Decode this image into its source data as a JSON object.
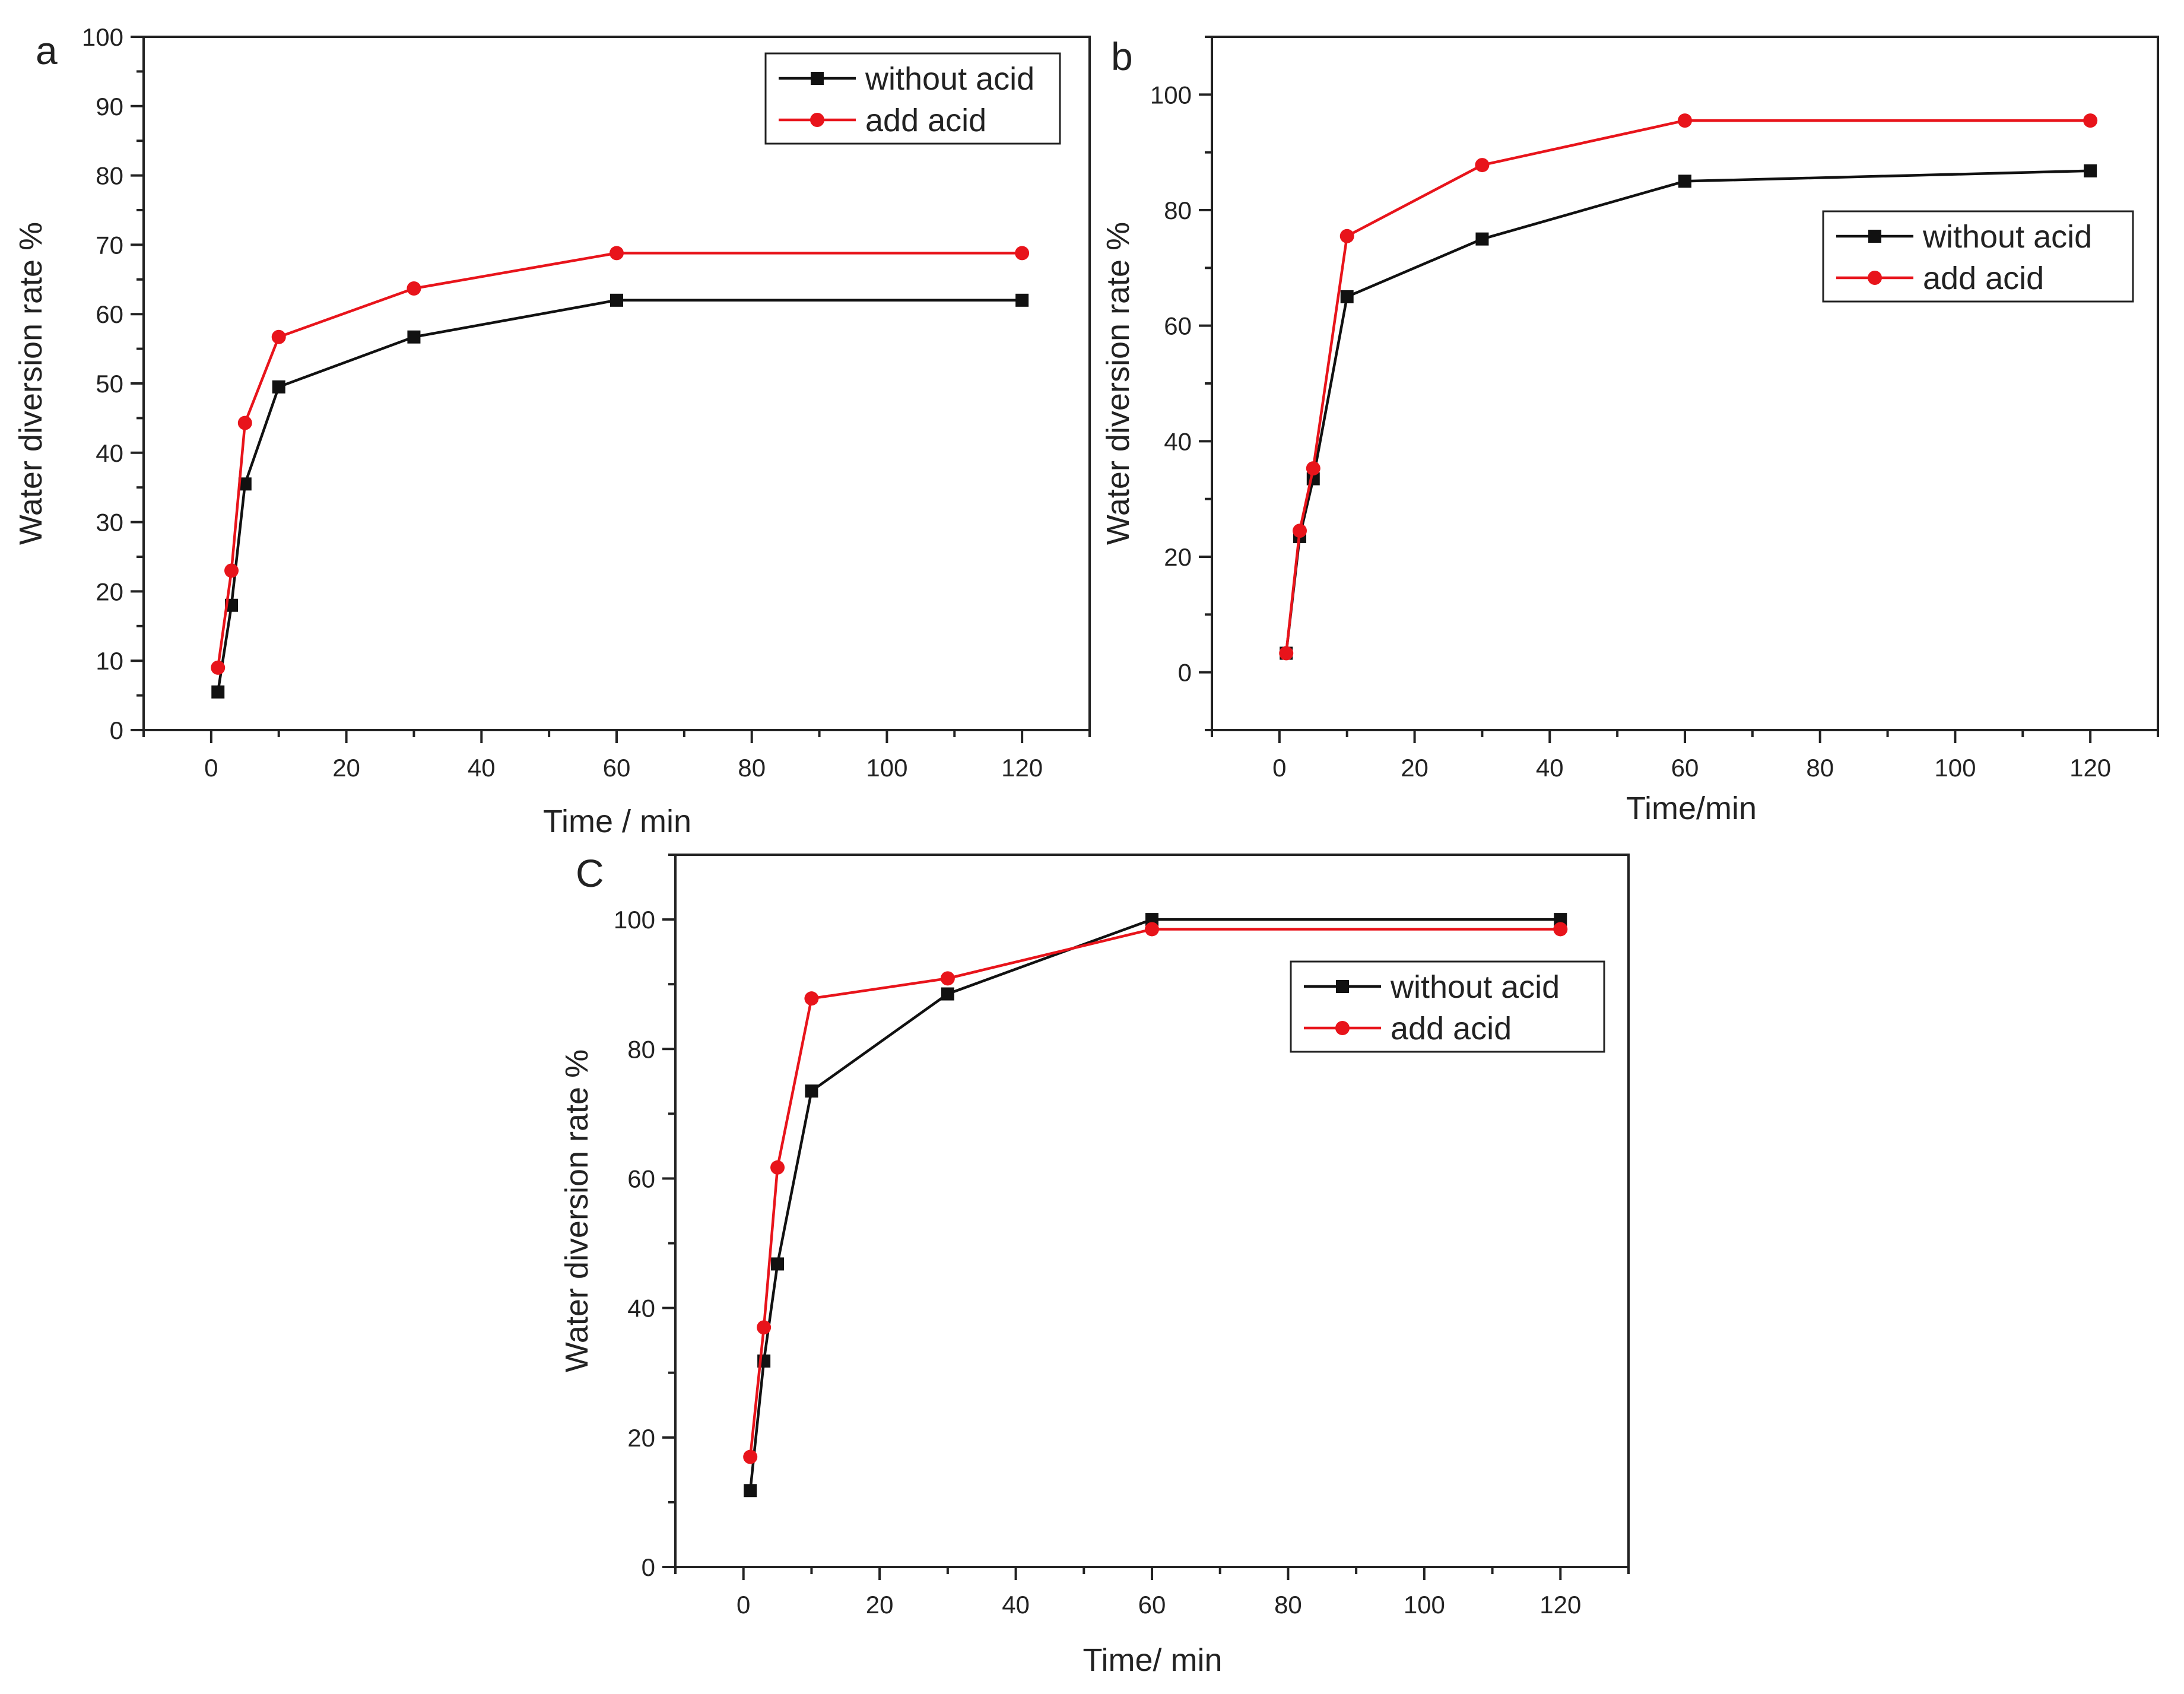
{
  "figure": {
    "background": "#ffffff"
  },
  "colors": {
    "without_acid": "#111111",
    "add_acid": "#e8141b",
    "axis": "#222222"
  },
  "chart_data": [
    {
      "panel": "a",
      "type": "line",
      "xlabel": "Time / min",
      "ylabel": "Water diversion rate %",
      "xlim": [
        -10,
        130
      ],
      "ylim": [
        0,
        100
      ],
      "xticks": [
        0,
        20,
        40,
        60,
        80,
        100,
        120
      ],
      "yticks": [
        0,
        10,
        20,
        30,
        40,
        50,
        60,
        70,
        80,
        90,
        100
      ],
      "legend_position": "top-right",
      "series": [
        {
          "name": "without acid",
          "marker": "square",
          "x": [
            1,
            3,
            5,
            10,
            30,
            60,
            120
          ],
          "y": [
            5.5,
            18,
            35.5,
            49.5,
            56.7,
            62,
            62
          ]
        },
        {
          "name": "add acid",
          "marker": "circle",
          "x": [
            1,
            3,
            5,
            10,
            30,
            60,
            120
          ],
          "y": [
            9,
            23,
            44.3,
            56.7,
            63.7,
            68.8,
            68.8
          ]
        }
      ]
    },
    {
      "panel": "b",
      "type": "line",
      "xlabel": "Time/min",
      "ylabel": "Water diversion rate %",
      "xlim": [
        -10,
        130
      ],
      "ylim": [
        -10,
        110
      ],
      "xticks": [
        0,
        20,
        40,
        60,
        80,
        100,
        120
      ],
      "yticks": [
        0,
        20,
        40,
        60,
        80,
        100
      ],
      "legend_position": "right",
      "series": [
        {
          "name": "without acid",
          "marker": "square",
          "x": [
            1,
            3,
            5,
            10,
            30,
            60,
            120
          ],
          "y": [
            3.3,
            23.5,
            33.5,
            65,
            75,
            85,
            86.8
          ]
        },
        {
          "name": "add acid",
          "marker": "circle",
          "x": [
            1,
            3,
            5,
            10,
            30,
            60,
            120
          ],
          "y": [
            3.3,
            24.5,
            35.3,
            75.5,
            87.8,
            95.5,
            95.5
          ]
        }
      ]
    },
    {
      "panel": "C",
      "type": "line",
      "xlabel": "Time/ min",
      "ylabel": "Water diversion rate %",
      "xlim": [
        -10,
        130
      ],
      "ylim": [
        0,
        110
      ],
      "xticks": [
        0,
        20,
        40,
        60,
        80,
        100,
        120
      ],
      "yticks": [
        0,
        20,
        40,
        60,
        80,
        100
      ],
      "legend_position": "top-right",
      "series": [
        {
          "name": "without acid",
          "marker": "square",
          "x": [
            1,
            3,
            5,
            10,
            30,
            60,
            120
          ],
          "y": [
            11.8,
            31.8,
            46.8,
            73.5,
            88.5,
            100,
            100
          ]
        },
        {
          "name": "add acid",
          "marker": "circle",
          "x": [
            1,
            3,
            5,
            10,
            30,
            60,
            120
          ],
          "y": [
            17,
            37,
            61.7,
            87.8,
            90.9,
            98.5,
            98.5
          ]
        }
      ]
    }
  ]
}
